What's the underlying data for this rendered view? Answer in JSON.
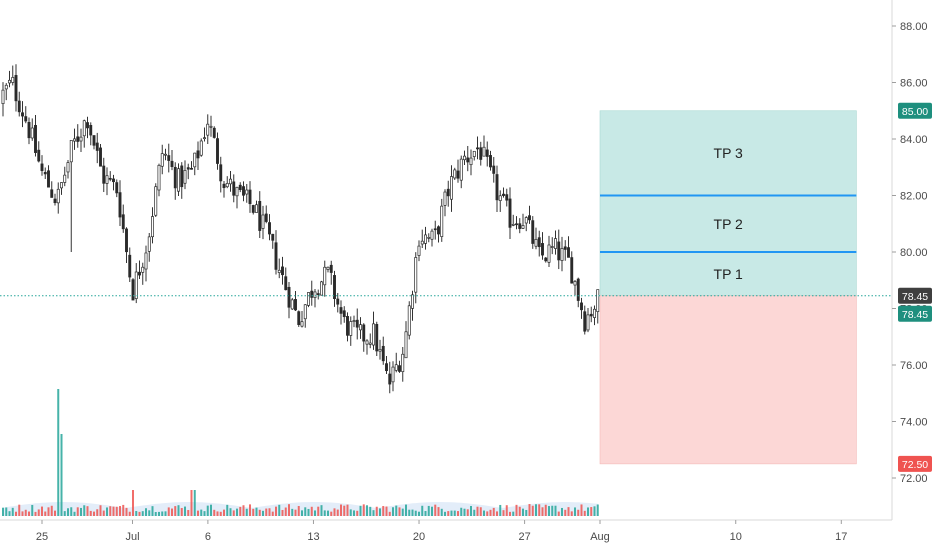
{
  "colors": {
    "up": "#26a69a",
    "down": "#ef5350",
    "candle_up": "#000000",
    "candle_down": "#000000",
    "profit_zone": "#c8e9e6",
    "loss_zone": "#fcd7d6",
    "tp_line": "#2196f3",
    "price_line": "#26a69a",
    "axis_text": "#4a4a4a",
    "axis_line": "#d9d9d9",
    "volume_area": "#dce9f7"
  },
  "chart_data": {
    "type": "candlestick",
    "ylim": [
      70.5,
      89.0
    ],
    "y_ticks": [
      "88.00",
      "86.00",
      "84.00",
      "82.00",
      "80.00",
      "78.00",
      "76.00",
      "74.00",
      "72.00"
    ],
    "x_ticks": [
      "25",
      "Jul",
      "6",
      "13",
      "20",
      "27",
      "Aug",
      "10",
      "17"
    ],
    "x_tick_dates": [
      "2020-06-25",
      "2020-07-01",
      "2020-07-06",
      "2020-07-13",
      "2020-07-20",
      "2020-07-27",
      "2020-08-01",
      "2020-08-10",
      "2020-08-17"
    ],
    "x_range_dates": [
      "2020-06-22",
      "2020-08-23"
    ],
    "last_price": 78.45,
    "last_price_label": "78.45",
    "close_path": [
      [
        "2020-06-22",
        85.3
      ],
      [
        "2020-06-23",
        86.0
      ],
      [
        "2020-06-24",
        84.6
      ],
      [
        "2020-06-25",
        82.8
      ],
      [
        "2020-06-26",
        81.8
      ],
      [
        "2020-06-27",
        83.7
      ],
      [
        "2020-06-28",
        84.8
      ],
      [
        "2020-06-29",
        82.7
      ],
      [
        "2020-06-30",
        82.2
      ],
      [
        "2020-07-01",
        78.6
      ],
      [
        "2020-07-02",
        80.4
      ],
      [
        "2020-07-03",
        83.6
      ],
      [
        "2020-07-04",
        82.5
      ],
      [
        "2020-07-05",
        82.9
      ],
      [
        "2020-07-06",
        84.7
      ],
      [
        "2020-07-07",
        82.6
      ],
      [
        "2020-07-08",
        82.0
      ],
      [
        "2020-07-09",
        81.6
      ],
      [
        "2020-07-10",
        80.5
      ],
      [
        "2020-07-11",
        79.0
      ],
      [
        "2020-07-12",
        77.6
      ],
      [
        "2020-07-13",
        78.8
      ],
      [
        "2020-07-14",
        79.2
      ],
      [
        "2020-07-15",
        77.5
      ],
      [
        "2020-07-16",
        77.0
      ],
      [
        "2020-07-17",
        77.1
      ],
      [
        "2020-07-18",
        75.3
      ],
      [
        "2020-07-19",
        76.6
      ],
      [
        "2020-07-20",
        80.6
      ],
      [
        "2020-07-21",
        80.4
      ],
      [
        "2020-07-22",
        82.3
      ],
      [
        "2020-07-23",
        83.3
      ],
      [
        "2020-07-24",
        83.7
      ],
      [
        "2020-07-25",
        82.3
      ],
      [
        "2020-07-26",
        81.2
      ],
      [
        "2020-07-27",
        81.2
      ],
      [
        "2020-07-28",
        79.8
      ],
      [
        "2020-07-29",
        80.1
      ],
      [
        "2020-07-30",
        79.6
      ],
      [
        "2020-07-31",
        77.6
      ],
      [
        "2020-08-01",
        78.45
      ]
    ],
    "volume_spikes": [
      [
        "2020-06-26",
        5.0
      ],
      [
        "2020-06-26",
        3.5
      ]
    ]
  },
  "position": {
    "stop_label": "72.50",
    "stop_price": 72.5,
    "target_label": "85.00",
    "target_price": 85.0,
    "entry_price": 78.45,
    "start_date": "2020-08-01",
    "end_date": "2020-08-18",
    "targets": [
      {
        "label": "TP 1",
        "price": 78.45
      },
      {
        "label": "TP 2",
        "price": 80.0
      },
      {
        "label": "TP 3",
        "price": 82.0
      }
    ]
  }
}
